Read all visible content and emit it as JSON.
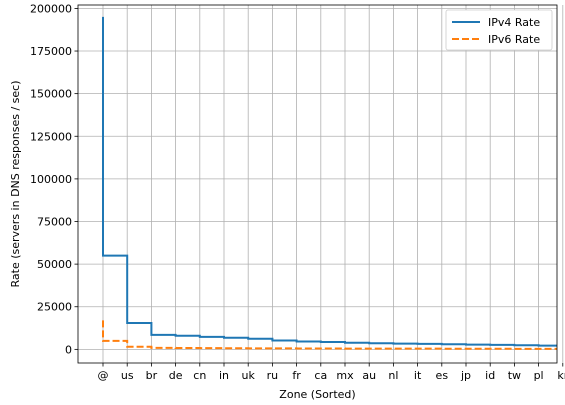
{
  "chart_data": {
    "type": "line",
    "xlabel": "Zone (Sorted)",
    "ylabel": "Rate (servers in DNS responses / sec)",
    "categories": [
      "@",
      "us",
      "br",
      "de",
      "cn",
      "in",
      "uk",
      "ru",
      "fr",
      "ca",
      "mx",
      "au",
      "nl",
      "it",
      "es",
      "jp",
      "id",
      "tw",
      "pl",
      "kr"
    ],
    "ylim": [
      -8000,
      202000
    ],
    "yticks": [
      0,
      25000,
      50000,
      75000,
      100000,
      125000,
      150000,
      175000,
      200000
    ],
    "grid": true,
    "legend_position": "top-right",
    "step": "post",
    "series": [
      {
        "name": "IPv4 Rate",
        "color": "#1f77b4",
        "style": "solid",
        "peak": 195000,
        "values": [
          55000,
          15500,
          8500,
          8000,
          7300,
          6800,
          6200,
          5200,
          4600,
          4300,
          3900,
          3600,
          3400,
          3200,
          3000,
          2800,
          2600,
          2400,
          2200,
          2000
        ]
      },
      {
        "name": "IPv6 Rate",
        "color": "#ff7f0e",
        "style": "dashed",
        "peak": 17000,
        "values": [
          5000,
          1500,
          900,
          800,
          700,
          650,
          600,
          550,
          500,
          480,
          460,
          440,
          420,
          400,
          380,
          360,
          340,
          320,
          300,
          280
        ]
      }
    ]
  }
}
